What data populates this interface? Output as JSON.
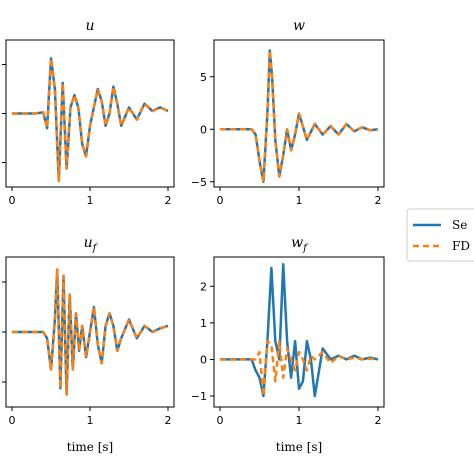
{
  "legend": {
    "entries": [
      {
        "label": "Se",
        "color": "#1f77b4",
        "dash": "solid"
      },
      {
        "label": "FD",
        "color": "#ff7f0e",
        "dash": "dashed"
      }
    ]
  },
  "chart_data": [
    {
      "type": "line",
      "title": "u",
      "xlabel": "",
      "x_ticks": [
        "0",
        "1",
        "2"
      ],
      "y_ticks": [],
      "xlim": [
        0,
        2
      ],
      "ylim": [
        -6,
        6
      ],
      "series": [
        {
          "name": "Se",
          "color": "#1f77b4",
          "x": [
            0,
            0.3,
            0.4,
            0.45,
            0.5,
            0.55,
            0.6,
            0.65,
            0.7,
            0.75,
            0.8,
            0.85,
            0.9,
            0.95,
            1.0,
            1.05,
            1.1,
            1.15,
            1.2,
            1.25,
            1.3,
            1.35,
            1.4,
            1.5,
            1.6,
            1.7,
            1.8,
            1.9,
            2.0
          ],
          "y": [
            0,
            0,
            0.1,
            -1.2,
            4.5,
            2.0,
            -5.5,
            2.5,
            -4.5,
            0.5,
            1.5,
            0.5,
            -2.5,
            -3.5,
            -1.0,
            0.5,
            2.0,
            1.0,
            -1.0,
            0.0,
            2.2,
            0.8,
            -1.0,
            0.5,
            -0.5,
            0.8,
            0.2,
            0.5,
            0.2
          ]
        },
        {
          "name": "FD",
          "color": "#ff7f0e",
          "x": [
            0,
            0.3,
            0.4,
            0.45,
            0.5,
            0.55,
            0.6,
            0.65,
            0.7,
            0.75,
            0.8,
            0.85,
            0.9,
            0.95,
            1.0,
            1.05,
            1.1,
            1.15,
            1.2,
            1.25,
            1.3,
            1.35,
            1.4,
            1.5,
            1.6,
            1.7,
            1.8,
            1.9,
            2.0
          ],
          "y": [
            0,
            0,
            0.1,
            -1.2,
            4.5,
            2.0,
            -5.5,
            2.5,
            -4.5,
            0.5,
            1.5,
            0.5,
            -2.5,
            -3.5,
            -1.0,
            0.5,
            2.0,
            1.0,
            -1.0,
            0.0,
            2.2,
            0.8,
            -1.0,
            0.5,
            -0.5,
            0.8,
            0.2,
            0.5,
            0.2
          ]
        }
      ]
    },
    {
      "type": "line",
      "title": "w",
      "xlabel": "",
      "x_ticks": [
        "0",
        "1",
        "2"
      ],
      "y_ticks": [
        "5",
        "0",
        "−5"
      ],
      "y_tick_values": [
        5,
        0,
        -5
      ],
      "xlim": [
        0,
        2
      ],
      "ylim": [
        -5.5,
        8.5
      ],
      "series": [
        {
          "name": "Se",
          "color": "#1f77b4",
          "x": [
            0,
            0.3,
            0.4,
            0.45,
            0.5,
            0.55,
            0.6,
            0.63,
            0.66,
            0.7,
            0.75,
            0.8,
            0.85,
            0.9,
            0.95,
            1.0,
            1.1,
            1.2,
            1.3,
            1.4,
            1.5,
            1.6,
            1.7,
            1.8,
            1.9,
            2.0
          ],
          "y": [
            0,
            0,
            0,
            -0.5,
            -3.0,
            -5.0,
            1.5,
            7.5,
            5.0,
            -1.0,
            -4.5,
            -2.5,
            0.0,
            -2.0,
            -0.5,
            1.5,
            -1.0,
            0.5,
            -0.5,
            0.3,
            -0.5,
            0.5,
            -0.2,
            0.2,
            -0.1,
            0.0
          ]
        },
        {
          "name": "FD",
          "color": "#ff7f0e",
          "x": [
            0,
            0.3,
            0.4,
            0.45,
            0.5,
            0.55,
            0.6,
            0.63,
            0.66,
            0.7,
            0.75,
            0.8,
            0.85,
            0.9,
            0.95,
            1.0,
            1.1,
            1.2,
            1.3,
            1.4,
            1.5,
            1.6,
            1.7,
            1.8,
            1.9,
            2.0
          ],
          "y": [
            0,
            0,
            0,
            -0.5,
            -3.0,
            -5.0,
            1.5,
            7.5,
            5.0,
            -1.0,
            -4.5,
            -2.5,
            0.0,
            -2.0,
            -0.5,
            1.5,
            -1.0,
            0.5,
            -0.5,
            0.3,
            -0.5,
            0.5,
            -0.2,
            0.2,
            -0.1,
            0.0
          ]
        }
      ]
    },
    {
      "type": "line",
      "title": "u_f",
      "xlabel": "time [s]",
      "x_ticks": [
        "0",
        "1",
        "2"
      ],
      "y_ticks": [],
      "xlim": [
        0,
        2
      ],
      "ylim": [
        -6,
        6
      ],
      "series": [
        {
          "name": "Se",
          "color": "#1f77b4",
          "x": [
            0,
            0.3,
            0.4,
            0.45,
            0.5,
            0.55,
            0.58,
            0.62,
            0.66,
            0.7,
            0.74,
            0.78,
            0.82,
            0.86,
            0.9,
            0.95,
            1.0,
            1.05,
            1.1,
            1.15,
            1.2,
            1.25,
            1.3,
            1.35,
            1.4,
            1.5,
            1.6,
            1.7,
            1.8,
            1.9,
            2.0
          ],
          "y": [
            0,
            0,
            0,
            -0.5,
            -3.0,
            1.0,
            5.0,
            -4.5,
            4.5,
            -5.0,
            3.0,
            -3.0,
            1.5,
            -1.5,
            0.5,
            -2.0,
            0.0,
            2.0,
            -1.0,
            -2.5,
            0.5,
            1.5,
            0.5,
            -1.5,
            -0.5,
            1.0,
            -0.5,
            0.5,
            0.0,
            0.3,
            0.5
          ]
        },
        {
          "name": "FD",
          "color": "#ff7f0e",
          "x": [
            0,
            0.3,
            0.4,
            0.45,
            0.5,
            0.55,
            0.58,
            0.62,
            0.66,
            0.7,
            0.74,
            0.78,
            0.82,
            0.86,
            0.9,
            0.95,
            1.0,
            1.05,
            1.1,
            1.15,
            1.2,
            1.25,
            1.3,
            1.35,
            1.4,
            1.5,
            1.6,
            1.7,
            1.8,
            1.9,
            2.0
          ],
          "y": [
            0,
            0,
            0,
            -0.5,
            -3.0,
            1.0,
            5.0,
            -4.5,
            4.5,
            -5.0,
            3.0,
            -3.0,
            1.5,
            -1.5,
            0.5,
            -2.0,
            0.0,
            2.0,
            -1.0,
            -2.5,
            0.5,
            1.5,
            0.5,
            -1.5,
            -0.5,
            1.0,
            -0.5,
            0.5,
            0.0,
            0.3,
            0.5
          ]
        }
      ]
    },
    {
      "type": "line",
      "title": "w_f",
      "xlabel": "time [s]",
      "x_ticks": [
        "0",
        "1",
        "2"
      ],
      "y_ticks": [
        "2",
        "1",
        "0",
        "−1"
      ],
      "y_tick_values": [
        2,
        1,
        0,
        -1
      ],
      "xlim": [
        0,
        2
      ],
      "ylim": [
        -1.3,
        2.8
      ],
      "series": [
        {
          "name": "Se",
          "color": "#1f77b4",
          "x": [
            0,
            0.3,
            0.4,
            0.45,
            0.5,
            0.55,
            0.6,
            0.65,
            0.7,
            0.75,
            0.8,
            0.85,
            0.9,
            0.95,
            1.0,
            1.05,
            1.1,
            1.15,
            1.2,
            1.3,
            1.4,
            1.5,
            1.6,
            1.7,
            1.8,
            1.9,
            2.0
          ],
          "y": [
            0,
            0,
            0,
            -0.3,
            -0.5,
            -1.0,
            0.5,
            2.5,
            0.5,
            0.0,
            2.6,
            0.5,
            -0.5,
            0.5,
            -0.8,
            -0.6,
            0.5,
            0.0,
            -1.0,
            0.3,
            0.0,
            0.1,
            0.0,
            0.1,
            0.0,
            0.05,
            0.0
          ]
        },
        {
          "name": "FD",
          "color": "#ff7f0e",
          "x": [
            0,
            0.3,
            0.4,
            0.45,
            0.5,
            0.55,
            0.6,
            0.65,
            0.7,
            0.75,
            0.8,
            0.85,
            0.9,
            0.95,
            1.0,
            1.05,
            1.1,
            1.15,
            1.2,
            1.3,
            1.4,
            1.5,
            1.6,
            1.7,
            1.8,
            1.9,
            2.0
          ],
          "y": [
            0,
            0,
            0,
            0.0,
            0.2,
            -1.0,
            0.5,
            0.4,
            -0.6,
            0.5,
            -0.5,
            0.3,
            0.0,
            -0.3,
            0.2,
            0.0,
            -0.3,
            0.1,
            0.0,
            0.2,
            -0.1,
            0.1,
            0.0,
            0.05,
            0.0,
            0.02,
            0.0
          ]
        }
      ]
    }
  ]
}
